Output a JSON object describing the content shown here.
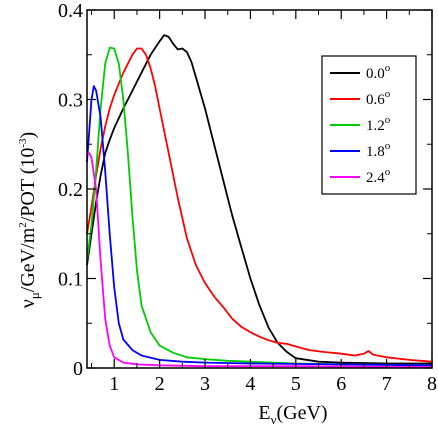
{
  "chart_data": {
    "type": "line",
    "xlabel": {
      "main": "E",
      "sub": "ν",
      "rest": "(GeV)"
    },
    "ylabel": {
      "parts": [
        {
          "t": "ν"
        },
        {
          "t": "μ",
          "sub": true
        },
        {
          "t": "/GeV/m"
        },
        {
          "t": "2",
          "sup": true
        },
        {
          "t": "/POT (10"
        },
        {
          "t": "-3",
          "sup": true
        },
        {
          "t": ")"
        }
      ]
    },
    "xlim": [
      0.4,
      8
    ],
    "ylim": [
      0,
      0.4
    ],
    "x_ticks": [
      1,
      2,
      3,
      4,
      5,
      6,
      7,
      8
    ],
    "y_ticks": [
      0,
      0.1,
      0.2,
      0.3,
      0.4
    ],
    "x_tick_labels": [
      "1",
      "2",
      "3",
      "4",
      "5",
      "6",
      "7",
      "8"
    ],
    "y_tick_labels": [
      "0",
      "0.1",
      "0.2",
      "0.3",
      "0.4"
    ],
    "legend_position": "top-right",
    "grid": false,
    "series": [
      {
        "name": "0.0",
        "degree": "o",
        "color": "#000000",
        "points": [
          [
            0.4,
            0.115
          ],
          [
            0.5,
            0.15
          ],
          [
            0.6,
            0.185
          ],
          [
            0.7,
            0.215
          ],
          [
            0.8,
            0.24
          ],
          [
            0.9,
            0.255
          ],
          [
            1.0,
            0.268
          ],
          [
            1.2,
            0.29
          ],
          [
            1.4,
            0.31
          ],
          [
            1.6,
            0.33
          ],
          [
            1.8,
            0.35
          ],
          [
            2.0,
            0.365
          ],
          [
            2.1,
            0.372
          ],
          [
            2.2,
            0.37
          ],
          [
            2.3,
            0.362
          ],
          [
            2.4,
            0.356
          ],
          [
            2.5,
            0.357
          ],
          [
            2.6,
            0.353
          ],
          [
            2.7,
            0.342
          ],
          [
            2.8,
            0.325
          ],
          [
            3.0,
            0.29
          ],
          [
            3.2,
            0.25
          ],
          [
            3.4,
            0.21
          ],
          [
            3.6,
            0.17
          ],
          [
            3.8,
            0.135
          ],
          [
            4.0,
            0.1
          ],
          [
            4.2,
            0.07
          ],
          [
            4.4,
            0.045
          ],
          [
            4.6,
            0.028
          ],
          [
            4.8,
            0.018
          ],
          [
            5.0,
            0.011
          ],
          [
            5.5,
            0.007
          ],
          [
            6.0,
            0.006
          ],
          [
            7.0,
            0.005
          ],
          [
            8.0,
            0.005
          ]
        ]
      },
      {
        "name": "0.6",
        "degree": "o",
        "color": "#ff0000",
        "points": [
          [
            0.4,
            0.15
          ],
          [
            0.5,
            0.18
          ],
          [
            0.6,
            0.215
          ],
          [
            0.7,
            0.245
          ],
          [
            0.8,
            0.27
          ],
          [
            0.9,
            0.29
          ],
          [
            1.0,
            0.305
          ],
          [
            1.2,
            0.33
          ],
          [
            1.4,
            0.35
          ],
          [
            1.5,
            0.357
          ],
          [
            1.6,
            0.357
          ],
          [
            1.7,
            0.35
          ],
          [
            1.8,
            0.335
          ],
          [
            1.9,
            0.315
          ],
          [
            2.0,
            0.29
          ],
          [
            2.2,
            0.24
          ],
          [
            2.4,
            0.19
          ],
          [
            2.6,
            0.145
          ],
          [
            2.8,
            0.115
          ],
          [
            3.0,
            0.095
          ],
          [
            3.2,
            0.08
          ],
          [
            3.4,
            0.068
          ],
          [
            3.6,
            0.055
          ],
          [
            3.8,
            0.046
          ],
          [
            4.0,
            0.04
          ],
          [
            4.2,
            0.035
          ],
          [
            4.4,
            0.031
          ],
          [
            4.6,
            0.028
          ],
          [
            4.8,
            0.027
          ],
          [
            5.0,
            0.024
          ],
          [
            5.3,
            0.02
          ],
          [
            5.6,
            0.018
          ],
          [
            6.0,
            0.016
          ],
          [
            6.3,
            0.014
          ],
          [
            6.5,
            0.016
          ],
          [
            6.6,
            0.019
          ],
          [
            6.7,
            0.015
          ],
          [
            7.0,
            0.012
          ],
          [
            7.5,
            0.009
          ],
          [
            8.0,
            0.007
          ]
        ]
      },
      {
        "name": "1.2",
        "degree": "o",
        "color": "#00cc00",
        "points": [
          [
            0.4,
            0.12
          ],
          [
            0.5,
            0.16
          ],
          [
            0.6,
            0.22
          ],
          [
            0.7,
            0.29
          ],
          [
            0.8,
            0.34
          ],
          [
            0.9,
            0.358
          ],
          [
            1.0,
            0.357
          ],
          [
            1.1,
            0.34
          ],
          [
            1.2,
            0.3
          ],
          [
            1.3,
            0.24
          ],
          [
            1.4,
            0.17
          ],
          [
            1.5,
            0.11
          ],
          [
            1.6,
            0.07
          ],
          [
            1.8,
            0.04
          ],
          [
            2.0,
            0.025
          ],
          [
            2.3,
            0.017
          ],
          [
            2.6,
            0.012
          ],
          [
            3.0,
            0.01
          ],
          [
            3.5,
            0.008
          ],
          [
            4.0,
            0.007
          ],
          [
            5.0,
            0.005
          ],
          [
            6.0,
            0.004
          ],
          [
            8.0,
            0.003
          ]
        ]
      },
      {
        "name": "1.8",
        "degree": "o",
        "color": "#0000ff",
        "points": [
          [
            0.4,
            0.23
          ],
          [
            0.5,
            0.3
          ],
          [
            0.55,
            0.315
          ],
          [
            0.6,
            0.31
          ],
          [
            0.7,
            0.28
          ],
          [
            0.8,
            0.22
          ],
          [
            0.9,
            0.15
          ],
          [
            1.0,
            0.09
          ],
          [
            1.1,
            0.05
          ],
          [
            1.2,
            0.032
          ],
          [
            1.4,
            0.02
          ],
          [
            1.6,
            0.014
          ],
          [
            2.0,
            0.009
          ],
          [
            2.5,
            0.007
          ],
          [
            3.0,
            0.006
          ],
          [
            4.0,
            0.005
          ],
          [
            6.0,
            0.004
          ],
          [
            8.0,
            0.003
          ]
        ]
      },
      {
        "name": "2.4",
        "degree": "o",
        "color": "#ff00ff",
        "points": [
          [
            0.4,
            0.24
          ],
          [
            0.45,
            0.24
          ],
          [
            0.5,
            0.235
          ],
          [
            0.6,
            0.2
          ],
          [
            0.7,
            0.12
          ],
          [
            0.8,
            0.055
          ],
          [
            0.9,
            0.025
          ],
          [
            1.0,
            0.012
          ],
          [
            1.2,
            0.006
          ],
          [
            1.5,
            0.004
          ],
          [
            2.0,
            0.003
          ],
          [
            3.0,
            0.002
          ],
          [
            5.0,
            0.002
          ],
          [
            8.0,
            0.001
          ]
        ]
      }
    ]
  }
}
